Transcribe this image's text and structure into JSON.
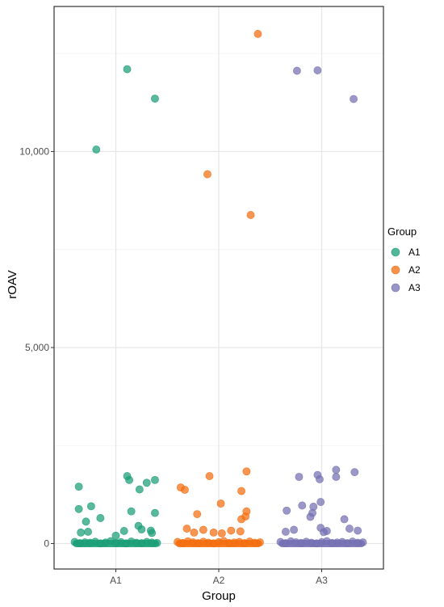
{
  "chart_data": {
    "type": "scatter",
    "title": "",
    "xlabel": "Group",
    "ylabel": "rOAV",
    "categories": [
      "A1",
      "A2",
      "A3"
    ],
    "y_ticks": [
      {
        "value": 0,
        "label": "0"
      },
      {
        "value": 5000,
        "label": "5,000"
      },
      {
        "value": 10000,
        "label": "10,000"
      }
    ],
    "ylim": [
      -650,
      13700
    ],
    "grid": true,
    "legend": {
      "title": "Group",
      "placement": "right",
      "entries": [
        "A1",
        "A2",
        "A3"
      ]
    },
    "colors": {
      "A1": "#1b9e77",
      "A2": "#f46d0f",
      "A3": "#7570b3"
    },
    "series": [
      {
        "name": "A1",
        "points": [
          [
            0.81,
            10050
          ],
          [
            1.11,
            12100
          ],
          [
            1.38,
            11350
          ],
          [
            0.64,
            1450
          ],
          [
            1.11,
            1720
          ],
          [
            1.13,
            1620
          ],
          [
            1.3,
            1550
          ],
          [
            1.38,
            1620
          ],
          [
            1.23,
            1380
          ],
          [
            0.76,
            950
          ],
          [
            0.64,
            880
          ],
          [
            1.15,
            820
          ],
          [
            1.38,
            780
          ],
          [
            0.85,
            650
          ],
          [
            0.71,
            560
          ],
          [
            1.22,
            450
          ],
          [
            1.25,
            360
          ],
          [
            1.34,
            330
          ],
          [
            1.08,
            320
          ],
          [
            0.73,
            300
          ],
          [
            0.66,
            280
          ],
          [
            1.35,
            270
          ],
          [
            1.0,
            200
          ],
          [
            0.6,
            40
          ],
          [
            0.65,
            10
          ],
          [
            0.7,
            30
          ],
          [
            0.75,
            20
          ],
          [
            0.8,
            45
          ],
          [
            0.85,
            5
          ],
          [
            0.9,
            25
          ],
          [
            0.95,
            60
          ],
          [
            1.0,
            15
          ],
          [
            1.05,
            35
          ],
          [
            1.1,
            5
          ],
          [
            1.15,
            50
          ],
          [
            1.2,
            20
          ],
          [
            1.25,
            10
          ],
          [
            1.3,
            40
          ],
          [
            1.35,
            25
          ],
          [
            1.4,
            15
          ]
        ]
      },
      {
        "name": "A2",
        "points": [
          [
            2.38,
            13000
          ],
          [
            1.89,
            9420
          ],
          [
            2.31,
            8380
          ],
          [
            2.27,
            1840
          ],
          [
            1.91,
            1720
          ],
          [
            1.63,
            1430
          ],
          [
            1.67,
            1370
          ],
          [
            2.22,
            1340
          ],
          [
            2.02,
            1020
          ],
          [
            2.27,
            820
          ],
          [
            1.79,
            750
          ],
          [
            2.26,
            690
          ],
          [
            2.22,
            620
          ],
          [
            1.69,
            380
          ],
          [
            1.85,
            350
          ],
          [
            2.12,
            330
          ],
          [
            2.21,
            310
          ],
          [
            1.76,
            280
          ],
          [
            2.03,
            260
          ],
          [
            1.95,
            280
          ],
          [
            1.6,
            40
          ],
          [
            1.65,
            15
          ],
          [
            1.7,
            55
          ],
          [
            1.75,
            30
          ],
          [
            1.8,
            10
          ],
          [
            1.85,
            45
          ],
          [
            1.9,
            20
          ],
          [
            1.95,
            5
          ],
          [
            2.0,
            35
          ],
          [
            2.05,
            60
          ],
          [
            2.1,
            15
          ],
          [
            2.15,
            25
          ],
          [
            2.2,
            40
          ],
          [
            2.25,
            10
          ],
          [
            2.3,
            50
          ],
          [
            2.35,
            20
          ],
          [
            2.4,
            30
          ]
        ]
      },
      {
        "name": "A3",
        "points": [
          [
            2.76,
            12060
          ],
          [
            2.96,
            12070
          ],
          [
            3.31,
            11340
          ],
          [
            3.14,
            1880
          ],
          [
            3.32,
            1820
          ],
          [
            2.96,
            1750
          ],
          [
            2.78,
            1700
          ],
          [
            3.14,
            1700
          ],
          [
            2.98,
            1640
          ],
          [
            2.99,
            1060
          ],
          [
            2.81,
            970
          ],
          [
            2.92,
            940
          ],
          [
            2.66,
            840
          ],
          [
            2.91,
            780
          ],
          [
            2.89,
            680
          ],
          [
            3.22,
            620
          ],
          [
            2.99,
            400
          ],
          [
            3.27,
            380
          ],
          [
            2.73,
            350
          ],
          [
            3.05,
            320
          ],
          [
            3.35,
            330
          ],
          [
            2.65,
            300
          ],
          [
            3.02,
            290
          ],
          [
            2.6,
            40
          ],
          [
            2.65,
            10
          ],
          [
            2.7,
            55
          ],
          [
            2.75,
            30
          ],
          [
            2.8,
            15
          ],
          [
            2.85,
            45
          ],
          [
            2.9,
            20
          ],
          [
            2.95,
            5
          ],
          [
            3.0,
            35
          ],
          [
            3.05,
            60
          ],
          [
            3.1,
            15
          ],
          [
            3.15,
            25
          ],
          [
            3.2,
            40
          ],
          [
            3.25,
            10
          ],
          [
            3.3,
            50
          ],
          [
            3.35,
            20
          ],
          [
            3.4,
            30
          ]
        ]
      }
    ],
    "baseline_band": {
      "y": 0,
      "x_ranges": [
        [
          0.58,
          1.42
        ],
        [
          1.58,
          2.42
        ],
        [
          2.58,
          3.42
        ]
      ]
    }
  }
}
